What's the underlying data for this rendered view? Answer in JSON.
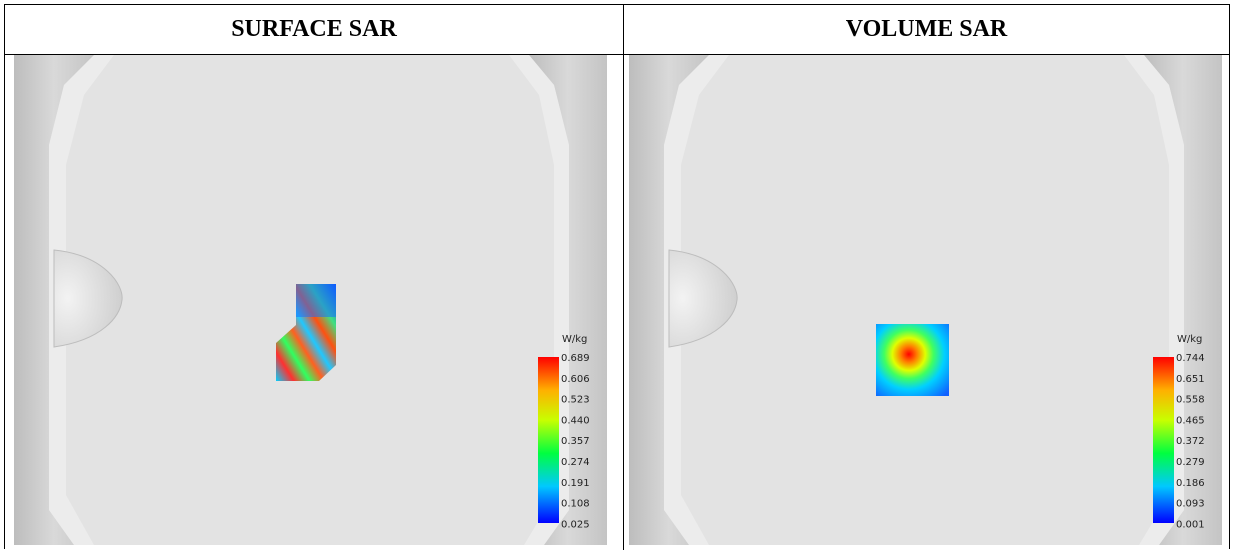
{
  "headers": {
    "left": "SURFACE SAR",
    "right": "VOLUME SAR"
  },
  "panels": [
    {
      "title": "SURFACE SAR",
      "colorbar": {
        "unit": "W/kg",
        "ticks": [
          "0.689",
          "0.606",
          "0.523",
          "0.440",
          "0.357",
          "0.274",
          "0.191",
          "0.108",
          "0.025"
        ]
      }
    },
    {
      "title": "VOLUME SAR",
      "colorbar": {
        "unit": "W/kg",
        "ticks": [
          "0.744",
          "0.651",
          "0.558",
          "0.465",
          "0.372",
          "0.279",
          "0.186",
          "0.093",
          "0.001"
        ]
      }
    }
  ],
  "colors": {
    "background": "#e6e6e6",
    "frame_shadow": "#c8c8c8",
    "colormap": [
      "#0000ff",
      "#00c8ff",
      "#00ff64",
      "#c8ff00",
      "#ffc800",
      "#ff0000"
    ]
  }
}
